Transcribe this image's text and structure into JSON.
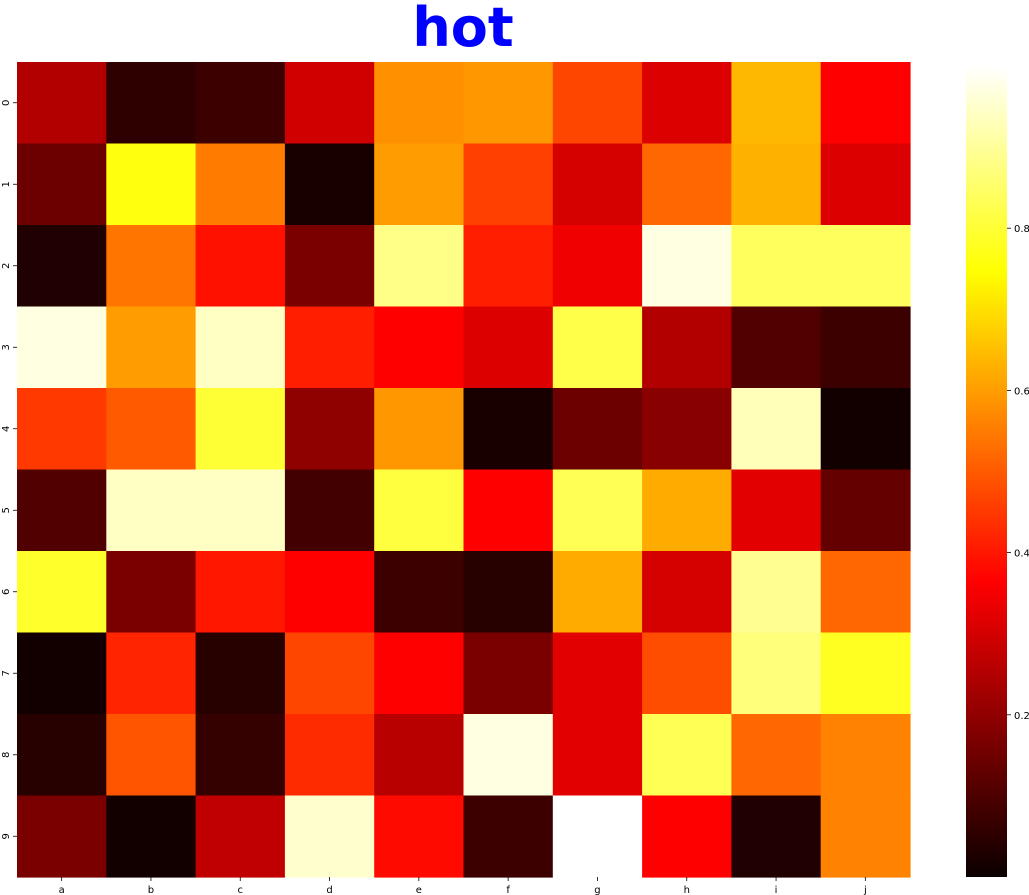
{
  "chart_data": {
    "type": "heatmap",
    "title": "hot",
    "title_color": "#0000ff",
    "colormap": "hot",
    "x_categories": [
      "a",
      "b",
      "c",
      "d",
      "e",
      "f",
      "g",
      "h",
      "i",
      "j"
    ],
    "y_categories": [
      "0",
      "1",
      "2",
      "3",
      "4",
      "5",
      "6",
      "7",
      "8",
      "9"
    ],
    "values": [
      [
        0.24,
        0.05,
        0.07,
        0.28,
        0.58,
        0.59,
        0.47,
        0.3,
        0.64,
        0.36
      ],
      [
        0.14,
        0.76,
        0.55,
        0.02,
        0.6,
        0.46,
        0.29,
        0.52,
        0.63,
        0.3
      ],
      [
        0.03,
        0.54,
        0.39,
        0.16,
        0.88,
        0.41,
        0.33,
        0.97,
        0.84,
        0.84
      ],
      [
        0.97,
        0.6,
        0.94,
        0.41,
        0.36,
        0.3,
        0.82,
        0.24,
        0.1,
        0.07
      ],
      [
        0.45,
        0.5,
        0.8,
        0.19,
        0.59,
        0.02,
        0.14,
        0.18,
        0.93,
        0.01
      ],
      [
        0.1,
        0.94,
        0.94,
        0.08,
        0.81,
        0.36,
        0.83,
        0.62,
        0.31,
        0.13
      ],
      [
        0.79,
        0.16,
        0.4,
        0.36,
        0.07,
        0.04,
        0.62,
        0.29,
        0.89,
        0.52
      ],
      [
        0.01,
        0.42,
        0.04,
        0.47,
        0.36,
        0.16,
        0.31,
        0.48,
        0.87,
        0.78
      ],
      [
        0.04,
        0.49,
        0.06,
        0.43,
        0.25,
        0.97,
        0.31,
        0.83,
        0.52,
        0.56
      ],
      [
        0.16,
        0.01,
        0.26,
        0.95,
        0.38,
        0.07,
        1.0,
        0.35,
        0.03,
        0.56
      ]
    ],
    "vmin": 0.0,
    "vmax": 1.0,
    "colorbar_ticks": [
      "0.2",
      "0.4",
      "0.6",
      "0.8"
    ],
    "colorbar_tick_values": [
      0.2,
      0.4,
      0.6,
      0.8
    ]
  }
}
